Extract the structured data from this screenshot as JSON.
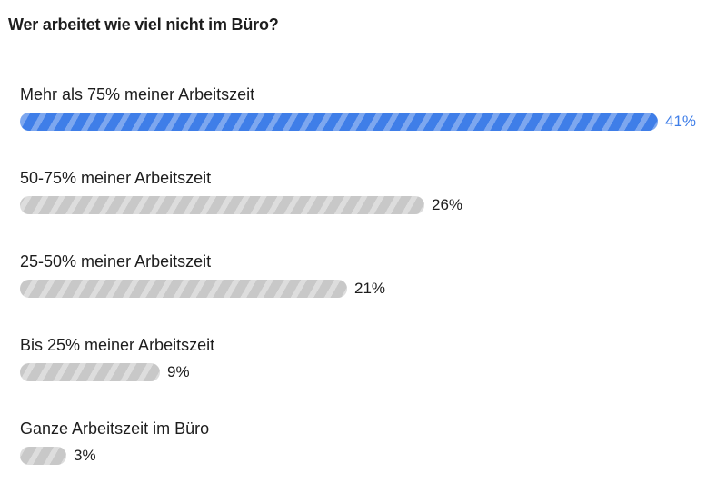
{
  "poll": {
    "title": "Wer arbeitet wie viel nicht im Büro?"
  },
  "colors": {
    "leading": "#3f7ee8",
    "other": "#c8c8c8"
  },
  "chart_data": {
    "type": "bar",
    "orientation": "horizontal",
    "title": "Wer arbeitet wie viel nicht im Büro?",
    "categories": [
      "Mehr als 75% meiner Arbeitszeit",
      "50-75% meiner Arbeitszeit",
      "25-50% meiner Arbeitszeit",
      "Bis 25% meiner Arbeitszeit",
      "Ganze Arbeitszeit im Büro"
    ],
    "values": [
      41,
      26,
      21,
      9,
      3
    ],
    "value_labels": [
      "41%",
      "26%",
      "21%",
      "9%",
      "3%"
    ],
    "unit": "%",
    "xlim": [
      0,
      41
    ],
    "grid": false,
    "legend": "none"
  }
}
